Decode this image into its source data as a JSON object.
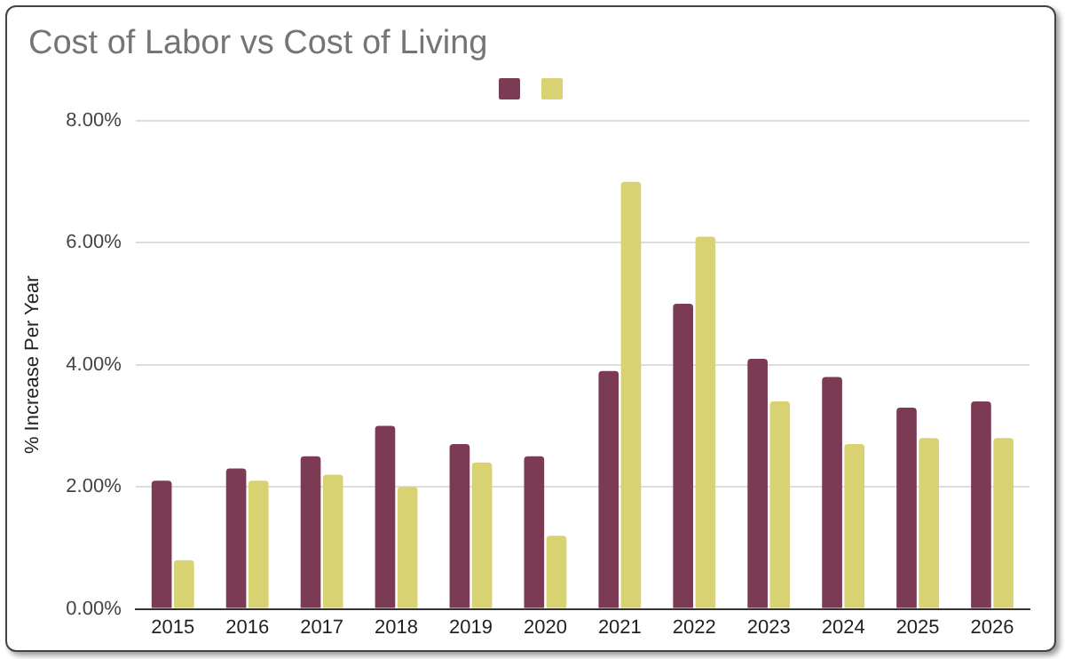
{
  "chart_data": {
    "type": "bar",
    "title": "Cost of Labor vs Cost of Living",
    "ylabel": "% Increase Per Year",
    "categories": [
      "2015",
      "2016",
      "2017",
      "2018",
      "2019",
      "2020",
      "2021",
      "2022",
      "2023",
      "2024",
      "2025",
      "2026"
    ],
    "series": [
      {
        "color": "#7b3b55",
        "values": [
          2.1,
          2.3,
          2.5,
          3.0,
          2.7,
          2.5,
          3.9,
          5.0,
          4.1,
          3.8,
          3.3,
          3.4
        ]
      },
      {
        "color": "#d9d273",
        "values": [
          0.8,
          2.1,
          2.2,
          2.0,
          2.4,
          1.2,
          7.0,
          6.1,
          3.4,
          2.7,
          2.8,
          2.8
        ]
      }
    ],
    "ylim": [
      0,
      8
    ],
    "yticks": [
      {
        "value": 0,
        "label": "0.00%"
      },
      {
        "value": 2,
        "label": "2.00%"
      },
      {
        "value": 4,
        "label": "4.00%"
      },
      {
        "value": 6,
        "label": "6.00%"
      },
      {
        "value": 8,
        "label": "8.00%"
      }
    ],
    "grid": "y"
  }
}
